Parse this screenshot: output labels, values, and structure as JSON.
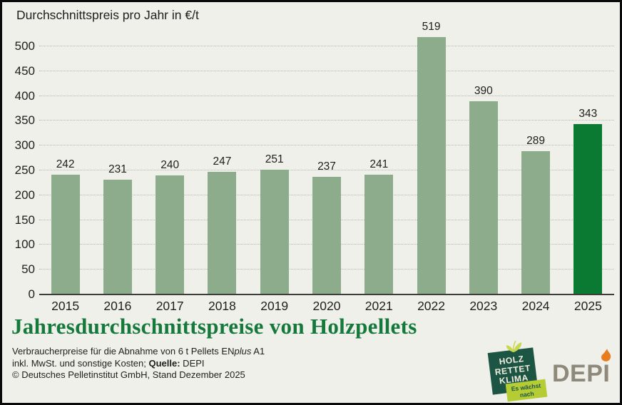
{
  "page": {
    "background": "#f0f0eb",
    "frame_color": "#0a0a0a"
  },
  "header": {
    "title": "Durchschnittspreis pro Jahr in €/t"
  },
  "chart_data": {
    "type": "bar",
    "title": "Durchschnittspreis pro Jahr in €/t",
    "categories": [
      "2015",
      "2016",
      "2017",
      "2018",
      "2019",
      "2020",
      "2021",
      "2022",
      "2023",
      "2024",
      "2025"
    ],
    "values": [
      242,
      231,
      240,
      247,
      251,
      237,
      241,
      519,
      390,
      289,
      343
    ],
    "xlabel": "",
    "ylabel": "€/t",
    "ylim": [
      0,
      500
    ],
    "ytick_step": 50,
    "grid": "horizontal-dotted",
    "legend": "none",
    "value_labels": true,
    "bar_color": "#8dac8b",
    "highlight_color": "#0a7a33",
    "highlight_index": 10
  },
  "footer": {
    "headline": "Jahresdurchschnittspreise von Holzpellets",
    "headline_color": "#15793b",
    "line1_pre": "Verbraucherpreise für die Abnahme von 6 t Pellets EN",
    "line1_italic": "plus",
    "line1_post": " A1",
    "line2_pre": "inkl. MwSt. und sonstige Kosten; ",
    "line2_bold": "Quelle:",
    "line2_post": " DEPI",
    "line3": "© Deutsches Pelletinstitut GmbH, Stand Dezember 2025"
  },
  "logos": {
    "hrk": {
      "line1": "HOLZ",
      "line2": "RETTET",
      "line3": "KLIMA",
      "ribbon_line1": "Es wächst",
      "ribbon_line2": "nach",
      "badge_color": "#1d5545",
      "ribbon_color": "#b5cc35",
      "leaf_color": "#c9d94f"
    },
    "depi": {
      "text": "DEPI",
      "text_color": "#8e897b",
      "flame_color": "#e87d1f"
    }
  }
}
